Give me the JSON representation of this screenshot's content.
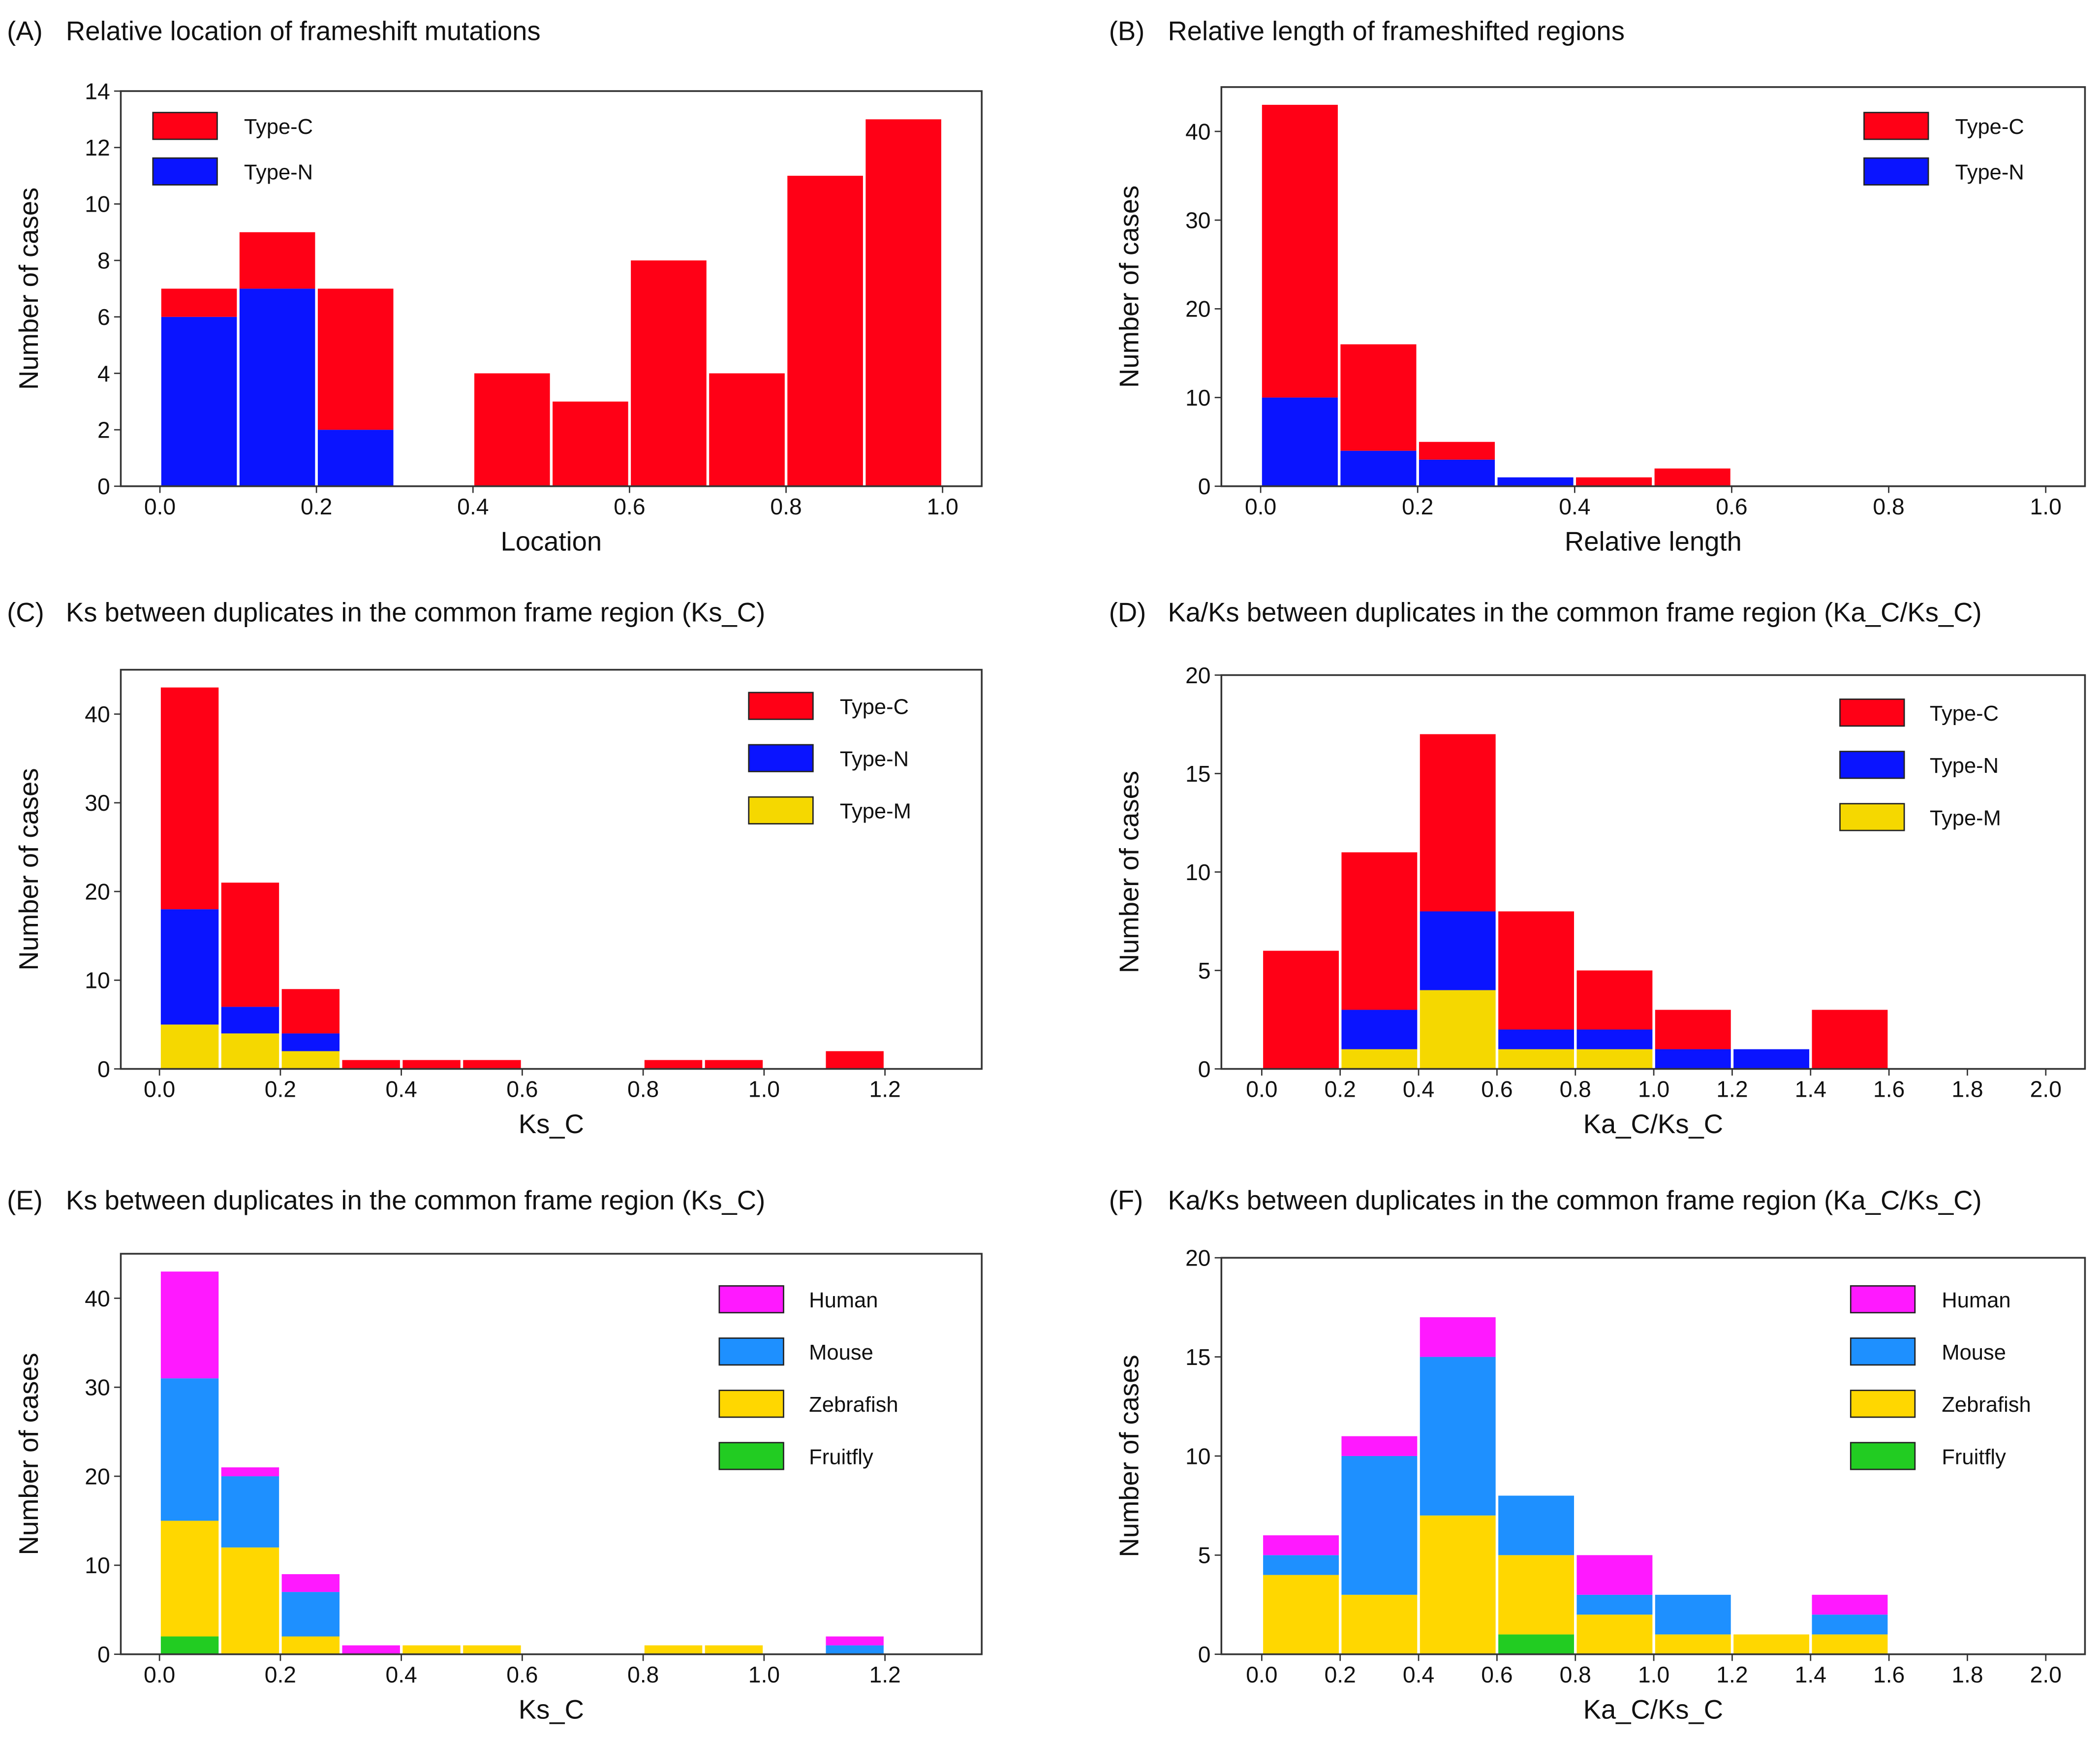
{
  "chart_data": [
    {
      "panel": "(A)",
      "title": "Relative location of frameshift mutations",
      "type": "bar",
      "stacked": true,
      "xlabel": "Location",
      "ylabel": "Number of cases",
      "bin_width": 0.1,
      "bin_starts": [
        0.0,
        0.1,
        0.2,
        0.3,
        0.4,
        0.5,
        0.6,
        0.7,
        0.8,
        0.9
      ],
      "xlim": [
        -0.05,
        1.05
      ],
      "ylim": [
        0,
        14
      ],
      "xticks": [
        "0.0",
        "0.2",
        "0.4",
        "0.6",
        "0.8",
        "1.0"
      ],
      "yticks": [
        "0",
        "2",
        "4",
        "6",
        "8",
        "10",
        "12",
        "14"
      ],
      "legend_position": "top-left",
      "series": [
        {
          "name": "Type-N",
          "color": "#0A14FF",
          "values": [
            6,
            7,
            2,
            0,
            0,
            0,
            0,
            0,
            0,
            0
          ]
        },
        {
          "name": "Type-C",
          "color": "#FF0016",
          "values": [
            1,
            2,
            5,
            0,
            4,
            3,
            8,
            4,
            11,
            13
          ]
        }
      ],
      "legend_order": [
        "Type-C",
        "Type-N"
      ]
    },
    {
      "panel": "(B)",
      "title": "Relative length of frameshifted regions",
      "type": "bar",
      "stacked": true,
      "xlabel": "Relative length",
      "ylabel": "Number of cases",
      "bin_width": 0.1,
      "bin_starts": [
        0.0,
        0.1,
        0.2,
        0.3,
        0.4,
        0.5
      ],
      "xlim": [
        -0.05,
        1.05
      ],
      "ylim": [
        0,
        45
      ],
      "xticks": [
        "0.0",
        "0.2",
        "0.4",
        "0.6",
        "0.8",
        "1.0"
      ],
      "yticks": [
        "0",
        "10",
        "20",
        "30",
        "40"
      ],
      "legend_position": "top-right",
      "series": [
        {
          "name": "Type-N",
          "color": "#0A14FF",
          "values": [
            10,
            4,
            3,
            1,
            0,
            0
          ]
        },
        {
          "name": "Type-C",
          "color": "#FF0016",
          "values": [
            33,
            12,
            2,
            0,
            1,
            2
          ]
        }
      ],
      "legend_order": [
        "Type-C",
        "Type-N"
      ]
    },
    {
      "panel": "(C)",
      "title": "Ks between duplicates in the common frame region (Ks_C)",
      "type": "bar",
      "stacked": true,
      "xlabel": "Ks_C",
      "ylabel": "Number of cases",
      "bin_width": 0.1,
      "bin_starts": [
        0.0,
        0.1,
        0.2,
        0.3,
        0.4,
        0.5,
        0.6,
        0.7,
        0.8,
        0.9,
        1.0,
        1.1
      ],
      "xlim": [
        -0.064,
        1.36
      ],
      "ylim": [
        0,
        45
      ],
      "xticks": [
        "0.0",
        "0.2",
        "0.4",
        "0.6",
        "0.8",
        "1.0",
        "1.2"
      ],
      "yticks": [
        "0",
        "10",
        "20",
        "30",
        "40"
      ],
      "legend_position": "top-right",
      "series": [
        {
          "name": "Type-M",
          "color": "#F5D800",
          "values": [
            5,
            4,
            2,
            0,
            0,
            0,
            0,
            0,
            0,
            0,
            0,
            0
          ]
        },
        {
          "name": "Type-N",
          "color": "#0A14FF",
          "values": [
            13,
            3,
            2,
            0,
            0,
            0,
            0,
            0,
            0,
            0,
            0,
            0
          ]
        },
        {
          "name": "Type-C",
          "color": "#FF0016",
          "values": [
            25,
            14,
            5,
            1,
            1,
            1,
            0,
            0,
            1,
            1,
            0,
            2
          ]
        }
      ],
      "legend_order": [
        "Type-C",
        "Type-N",
        "Type-M"
      ]
    },
    {
      "panel": "(D)",
      "title": "Ka/Ks between duplicates in the common frame region (Ka_C/Ks_C)",
      "type": "bar",
      "stacked": true,
      "xlabel": "Ka_C/Ks_C",
      "ylabel": "Number of cases",
      "bin_width": 0.2,
      "bin_starts": [
        0.0,
        0.2,
        0.4,
        0.6,
        0.8,
        1.0,
        1.2,
        1.4
      ],
      "xlim": [
        -0.103,
        2.1
      ],
      "ylim": [
        0,
        20
      ],
      "xticks": [
        "0.0",
        "0.2",
        "0.4",
        "0.6",
        "0.8",
        "1.0",
        "1.2",
        "1.4",
        "1.6",
        "1.8",
        "2.0"
      ],
      "yticks": [
        "0",
        "5",
        "10",
        "15",
        "20"
      ],
      "legend_position": "top-right",
      "series": [
        {
          "name": "Type-M",
          "color": "#F5D800",
          "values": [
            0,
            1,
            4,
            1,
            1,
            0,
            0,
            0
          ]
        },
        {
          "name": "Type-N",
          "color": "#0A14FF",
          "values": [
            0,
            2,
            4,
            1,
            1,
            1,
            1,
            0
          ]
        },
        {
          "name": "Type-C",
          "color": "#FF0016",
          "values": [
            6,
            8,
            9,
            6,
            3,
            2,
            0,
            3
          ]
        }
      ],
      "legend_order": [
        "Type-C",
        "Type-N",
        "Type-M"
      ]
    },
    {
      "panel": "(E)",
      "title": "Ks between duplicates in the common frame region (Ks_C)",
      "type": "bar",
      "stacked": true,
      "xlabel": "Ks_C",
      "ylabel": "Number of cases",
      "bin_width": 0.1,
      "bin_starts": [
        0.0,
        0.1,
        0.2,
        0.3,
        0.4,
        0.5,
        0.6,
        0.7,
        0.8,
        0.9,
        1.0,
        1.1
      ],
      "xlim": [
        -0.064,
        1.36
      ],
      "ylim": [
        0,
        45
      ],
      "xticks": [
        "0.0",
        "0.2",
        "0.4",
        "0.6",
        "0.8",
        "1.0",
        "1.2"
      ],
      "yticks": [
        "0",
        "10",
        "20",
        "30",
        "40"
      ],
      "legend_position": "top-right",
      "series": [
        {
          "name": "Fruitfly",
          "color": "#22CC22",
          "values": [
            2,
            0,
            0,
            0,
            0,
            0,
            0,
            0,
            0,
            0,
            0,
            0
          ]
        },
        {
          "name": "Zebrafish",
          "color": "#FFD700",
          "values": [
            13,
            12,
            2,
            0,
            1,
            1,
            0,
            0,
            1,
            1,
            0,
            0
          ]
        },
        {
          "name": "Mouse",
          "color": "#1E90FF",
          "values": [
            16,
            8,
            5,
            0,
            0,
            0,
            0,
            0,
            0,
            0,
            0,
            1
          ]
        },
        {
          "name": "Human",
          "color": "#FF19FF",
          "values": [
            12,
            1,
            2,
            1,
            0,
            0,
            0,
            0,
            0,
            0,
            0,
            1
          ]
        }
      ],
      "legend_order": [
        "Human",
        "Mouse",
        "Zebrafish",
        "Fruitfly"
      ]
    },
    {
      "panel": "(F)",
      "title": "Ka/Ks between duplicates in the common frame region (Ka_C/Ks_C)",
      "type": "bar",
      "stacked": true,
      "xlabel": "Ka_C/Ks_C",
      "ylabel": "Number of cases",
      "bin_width": 0.2,
      "bin_starts": [
        0.0,
        0.2,
        0.4,
        0.6,
        0.8,
        1.0,
        1.2,
        1.4
      ],
      "xlim": [
        -0.103,
        2.1
      ],
      "ylim": [
        0,
        20
      ],
      "xticks": [
        "0.0",
        "0.2",
        "0.4",
        "0.6",
        "0.8",
        "1.0",
        "1.2",
        "1.4",
        "1.6",
        "1.8",
        "2.0"
      ],
      "yticks": [
        "0",
        "5",
        "10",
        "15",
        "20"
      ],
      "legend_position": "top-right",
      "series": [
        {
          "name": "Fruitfly",
          "color": "#22CC22",
          "values": [
            0,
            0,
            0,
            1,
            0,
            0,
            0,
            0
          ]
        },
        {
          "name": "Zebrafish",
          "color": "#FFD700",
          "values": [
            4,
            3,
            7,
            4,
            2,
            1,
            1,
            1
          ]
        },
        {
          "name": "Mouse",
          "color": "#1E90FF",
          "values": [
            1,
            7,
            8,
            3,
            1,
            2,
            0,
            1
          ]
        },
        {
          "name": "Human",
          "color": "#FF19FF",
          "values": [
            1,
            1,
            2,
            0,
            2,
            0,
            0,
            1
          ]
        }
      ],
      "legend_order": [
        "Human",
        "Mouse",
        "Zebrafish",
        "Fruitfly"
      ]
    }
  ]
}
